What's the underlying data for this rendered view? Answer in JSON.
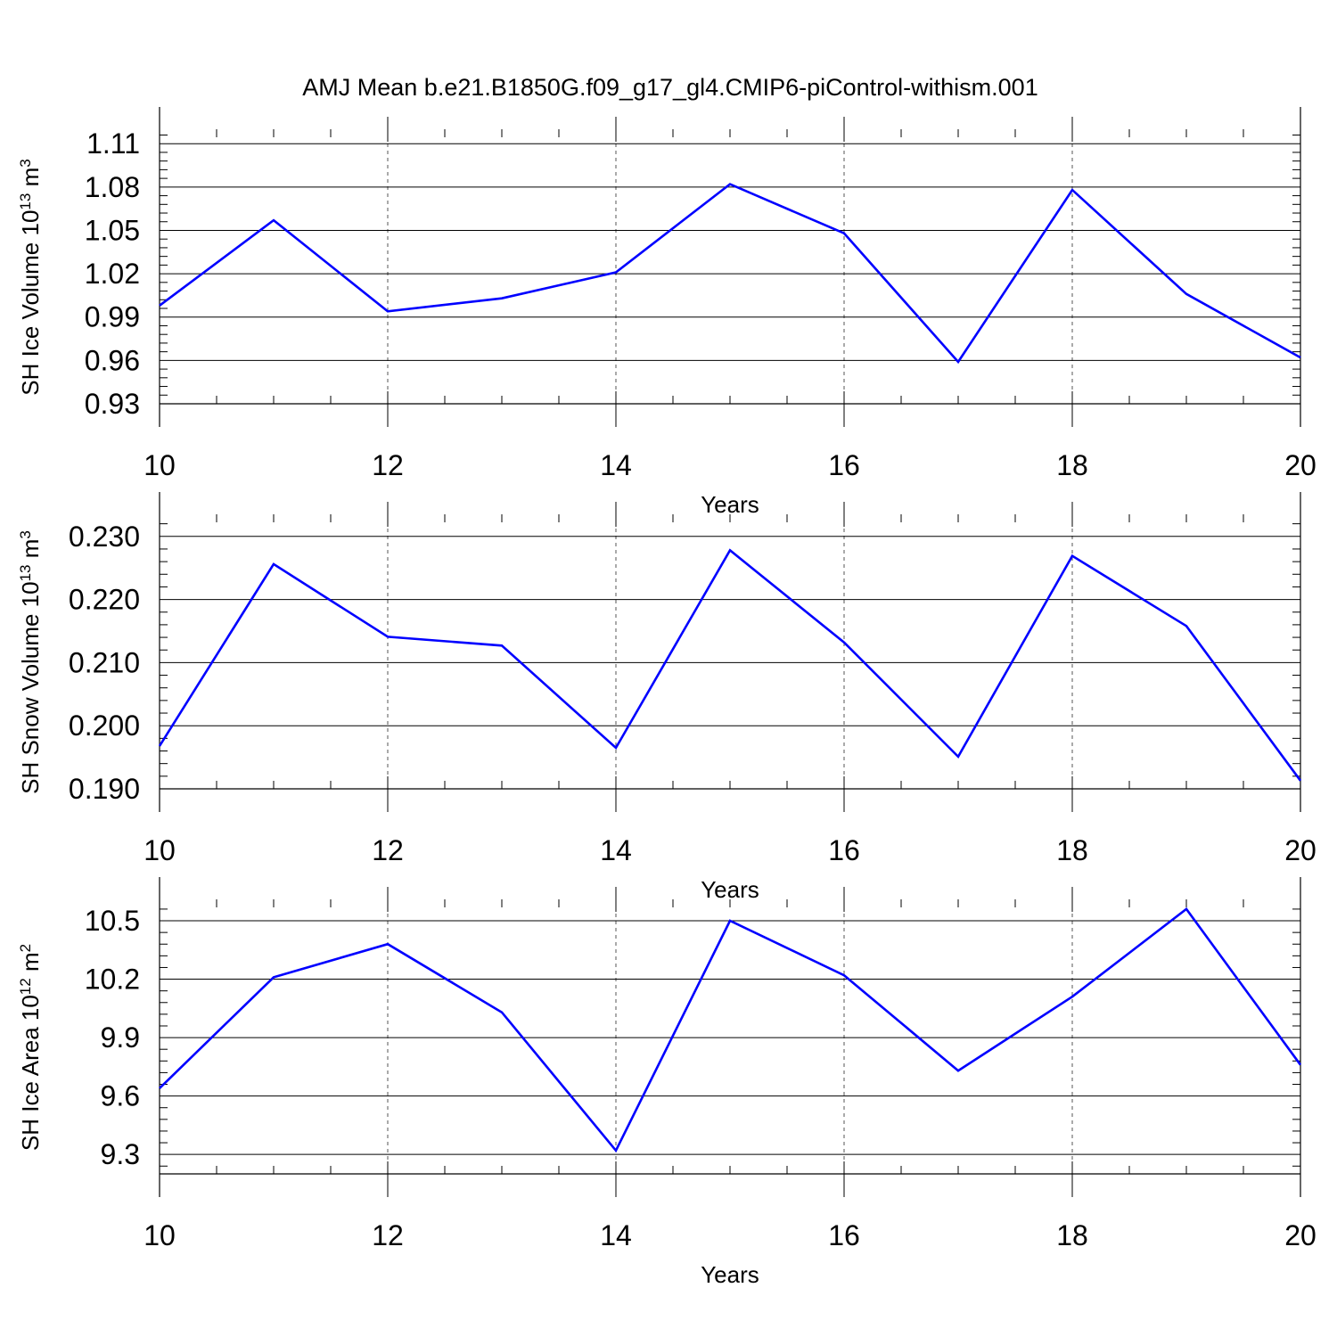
{
  "figure": {
    "title": "AMJ Mean b.e21.B1850G.f09_g17_gl4.CMIP6-piControl-withism.001"
  },
  "chart_data": [
    {
      "type": "line",
      "xlabel": "Years",
      "ylabel": {
        "text": "SH Ice Volume 10",
        "exp": "13",
        "unit": " m",
        "unit_exp": "3"
      },
      "xlim": [
        10,
        20
      ],
      "ylim": [
        0.93,
        1.12
      ],
      "xticks": [
        "10",
        "12",
        "14",
        "16",
        "18",
        "20"
      ],
      "yticks": [
        "1.11",
        "1.08",
        "1.05",
        "1.02",
        "0.99",
        "0.96",
        "0.93"
      ],
      "grid": "vertical dashed at major x ticks",
      "line_color": "#0000ff",
      "x": [
        10,
        11,
        12,
        13,
        14,
        15,
        16,
        17,
        18,
        19,
        20
      ],
      "y": [
        0.998,
        1.057,
        0.994,
        1.003,
        1.021,
        1.082,
        1.048,
        0.959,
        1.078,
        1.006,
        0.962
      ]
    },
    {
      "type": "line",
      "xlabel": "Years",
      "ylabel": {
        "text": "SH Snow Volume 10",
        "exp": "13",
        "unit": " m",
        "unit_exp": "3"
      },
      "xlim": [
        10,
        20
      ],
      "ylim": [
        0.19,
        0.2335
      ],
      "xticks": [
        "10",
        "12",
        "14",
        "16",
        "18",
        "20"
      ],
      "yticks": [
        "0.230",
        "0.220",
        "0.210",
        "0.200",
        "0.190"
      ],
      "grid": "vertical dashed at major x ticks",
      "line_color": "#0000ff",
      "x": [
        10,
        11,
        12,
        13,
        14,
        15,
        16,
        17,
        18,
        19,
        20
      ],
      "y": [
        0.1968,
        0.2256,
        0.2141,
        0.2127,
        0.1965,
        0.2278,
        0.2132,
        0.1951,
        0.2269,
        0.2158,
        0.1913
      ]
    },
    {
      "type": "line",
      "xlabel": "Years",
      "ylabel": {
        "text": "SH Ice Area 10",
        "exp": "12",
        "unit": " m",
        "unit_exp": "2"
      },
      "xlim": [
        10,
        20
      ],
      "ylim": [
        9.2,
        10.61
      ],
      "xticks": [
        "10",
        "12",
        "14",
        "16",
        "18",
        "20"
      ],
      "yticks": [
        "10.5",
        "10.2",
        "9.9",
        "9.6",
        "9.3"
      ],
      "grid": "vertical dashed at major x ticks",
      "line_color": "#0000ff",
      "x": [
        10,
        11,
        12,
        13,
        14,
        15,
        16,
        17,
        18,
        19,
        20
      ],
      "y": [
        9.64,
        10.21,
        10.38,
        10.03,
        9.32,
        10.5,
        10.22,
        9.73,
        10.11,
        10.56,
        9.76
      ]
    }
  ]
}
